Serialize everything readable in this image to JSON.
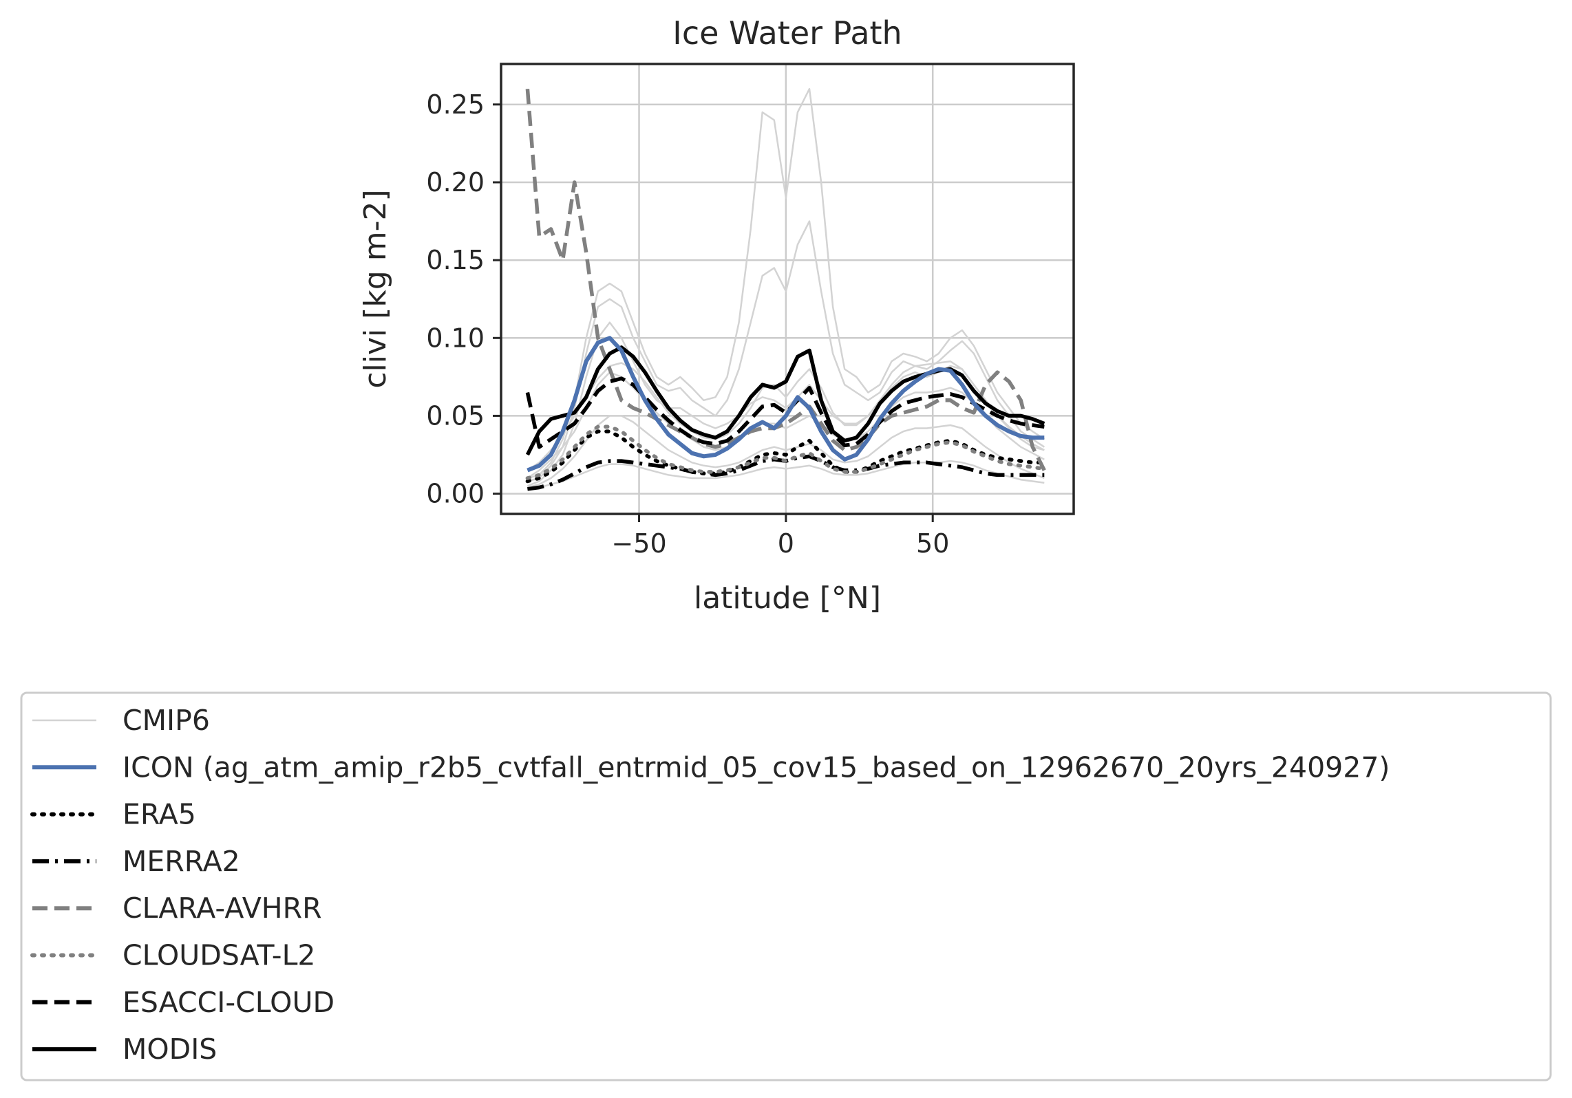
{
  "chart_data": {
    "type": "line",
    "title": "Ice Water Path",
    "xlabel": "latitude [°N]",
    "ylabel": "clivi [kg m-2]",
    "xlim": [
      -97,
      98
    ],
    "ylim": [
      -0.013,
      0.276
    ],
    "xticks": [
      -50,
      0,
      50
    ],
    "xtick_labels": [
      "−50",
      "0",
      "50"
    ],
    "yticks": [
      0.0,
      0.05,
      0.1,
      0.15,
      0.2,
      0.25
    ],
    "ytick_labels": [
      "0.00",
      "0.05",
      "0.10",
      "0.15",
      "0.20",
      "0.25"
    ],
    "grid": true,
    "legend_placement": "below",
    "x": [
      -88,
      -84,
      -80,
      -76,
      -72,
      -68,
      -64,
      -60,
      -56,
      -52,
      -48,
      -44,
      -40,
      -36,
      -32,
      -28,
      -24,
      -20,
      -16,
      -12,
      -8,
      -4,
      0,
      4,
      8,
      12,
      16,
      20,
      24,
      28,
      32,
      36,
      40,
      44,
      48,
      52,
      56,
      60,
      64,
      68,
      72,
      76,
      80,
      84,
      88
    ],
    "cmip6_series": [
      {
        "name": "CMIP6",
        "values": [
          0.01,
          0.012,
          0.02,
          0.035,
          0.06,
          0.1,
          0.13,
          0.135,
          0.13,
          0.11,
          0.09,
          0.075,
          0.07,
          0.075,
          0.068,
          0.06,
          0.062,
          0.075,
          0.11,
          0.17,
          0.245,
          0.24,
          0.19,
          0.245,
          0.26,
          0.2,
          0.12,
          0.08,
          0.075,
          0.065,
          0.07,
          0.085,
          0.09,
          0.088,
          0.085,
          0.09,
          0.1,
          0.105,
          0.095,
          0.08,
          0.065,
          0.055,
          0.045,
          0.04,
          0.035
        ]
      },
      {
        "name": "CMIP6",
        "values": [
          0.008,
          0.01,
          0.018,
          0.03,
          0.055,
          0.09,
          0.12,
          0.125,
          0.12,
          0.1,
          0.085,
          0.07,
          0.066,
          0.068,
          0.06,
          0.055,
          0.05,
          0.06,
          0.08,
          0.11,
          0.14,
          0.145,
          0.13,
          0.16,
          0.175,
          0.13,
          0.09,
          0.07,
          0.065,
          0.06,
          0.065,
          0.078,
          0.085,
          0.082,
          0.08,
          0.085,
          0.092,
          0.098,
          0.09,
          0.075,
          0.06,
          0.05,
          0.04,
          0.035,
          0.03
        ]
      },
      {
        "name": "CMIP6",
        "values": [
          0.005,
          0.008,
          0.015,
          0.025,
          0.045,
          0.075,
          0.1,
          0.11,
          0.1,
          0.085,
          0.07,
          0.06,
          0.055,
          0.055,
          0.05,
          0.045,
          0.042,
          0.045,
          0.05,
          0.058,
          0.062,
          0.06,
          0.055,
          0.062,
          0.07,
          0.06,
          0.05,
          0.045,
          0.045,
          0.05,
          0.058,
          0.068,
          0.075,
          0.078,
          0.075,
          0.078,
          0.082,
          0.08,
          0.07,
          0.06,
          0.05,
          0.042,
          0.035,
          0.03,
          0.028
        ]
      },
      {
        "name": "CMIP6",
        "values": [
          0.01,
          0.015,
          0.022,
          0.03,
          0.04,
          0.055,
          0.07,
          0.078,
          0.075,
          0.068,
          0.06,
          0.052,
          0.045,
          0.04,
          0.035,
          0.03,
          0.028,
          0.03,
          0.035,
          0.04,
          0.045,
          0.045,
          0.042,
          0.046,
          0.05,
          0.045,
          0.038,
          0.034,
          0.035,
          0.04,
          0.048,
          0.056,
          0.062,
          0.065,
          0.065,
          0.066,
          0.068,
          0.065,
          0.058,
          0.05,
          0.042,
          0.036,
          0.03,
          0.026,
          0.022
        ]
      },
      {
        "name": "CMIP6",
        "values": [
          0.004,
          0.006,
          0.01,
          0.016,
          0.024,
          0.034,
          0.044,
          0.05,
          0.05,
          0.046,
          0.04,
          0.034,
          0.028,
          0.024,
          0.02,
          0.018,
          0.017,
          0.018,
          0.02,
          0.024,
          0.028,
          0.03,
          0.028,
          0.03,
          0.032,
          0.028,
          0.022,
          0.02,
          0.021,
          0.024,
          0.03,
          0.036,
          0.04,
          0.042,
          0.042,
          0.043,
          0.044,
          0.042,
          0.036,
          0.03,
          0.025,
          0.02,
          0.016,
          0.013,
          0.01
        ]
      },
      {
        "name": "CMIP6",
        "values": [
          0.003,
          0.004,
          0.006,
          0.008,
          0.011,
          0.014,
          0.017,
          0.019,
          0.019,
          0.018,
          0.016,
          0.014,
          0.012,
          0.011,
          0.01,
          0.01,
          0.01,
          0.011,
          0.012,
          0.014,
          0.016,
          0.017,
          0.016,
          0.017,
          0.018,
          0.016,
          0.013,
          0.012,
          0.012,
          0.013,
          0.015,
          0.017,
          0.019,
          0.02,
          0.02,
          0.02,
          0.021,
          0.02,
          0.018,
          0.015,
          0.013,
          0.011,
          0.009,
          0.008,
          0.007
        ]
      },
      {
        "name": "CMIP6",
        "values": [
          0.015,
          0.02,
          0.028,
          0.038,
          0.05,
          0.062,
          0.074,
          0.082,
          0.084,
          0.08,
          0.072,
          0.062,
          0.052,
          0.045,
          0.04,
          0.036,
          0.035,
          0.038,
          0.045,
          0.055,
          0.068,
          0.07,
          0.062,
          0.072,
          0.08,
          0.068,
          0.052,
          0.044,
          0.044,
          0.05,
          0.06,
          0.07,
          0.078,
          0.082,
          0.083,
          0.084,
          0.085,
          0.08,
          0.07,
          0.06,
          0.05,
          0.043,
          0.037,
          0.032,
          0.028
        ]
      }
    ],
    "series": [
      {
        "name": "ICON (ag_atm_amip_r2b5_cvtfall_entrmid_05_cov15_based_on_12962670_20yrs_240927)",
        "color": "#4c72b0",
        "style": "solid",
        "values": [
          0.015,
          0.018,
          0.025,
          0.04,
          0.06,
          0.085,
          0.097,
          0.1,
          0.092,
          0.075,
          0.06,
          0.048,
          0.038,
          0.032,
          0.026,
          0.024,
          0.025,
          0.029,
          0.035,
          0.042,
          0.046,
          0.042,
          0.05,
          0.062,
          0.055,
          0.04,
          0.028,
          0.022,
          0.025,
          0.035,
          0.048,
          0.058,
          0.066,
          0.072,
          0.077,
          0.08,
          0.079,
          0.07,
          0.058,
          0.05,
          0.044,
          0.04,
          0.037,
          0.036,
          0.036
        ]
      },
      {
        "name": "ERA5",
        "color": "#000000",
        "style": "dotted",
        "values": [
          0.008,
          0.01,
          0.014,
          0.02,
          0.028,
          0.036,
          0.04,
          0.04,
          0.036,
          0.03,
          0.025,
          0.021,
          0.018,
          0.016,
          0.014,
          0.013,
          0.013,
          0.014,
          0.017,
          0.021,
          0.025,
          0.026,
          0.025,
          0.03,
          0.034,
          0.026,
          0.018,
          0.014,
          0.014,
          0.017,
          0.021,
          0.024,
          0.027,
          0.029,
          0.031,
          0.033,
          0.034,
          0.032,
          0.028,
          0.025,
          0.023,
          0.022,
          0.021,
          0.02,
          0.02
        ]
      },
      {
        "name": "MERRA2",
        "color": "#000000",
        "style": "dashdot",
        "values": [
          0.003,
          0.004,
          0.006,
          0.009,
          0.013,
          0.017,
          0.02,
          0.021,
          0.021,
          0.02,
          0.019,
          0.018,
          0.017,
          0.016,
          0.014,
          0.013,
          0.012,
          0.013,
          0.015,
          0.018,
          0.021,
          0.022,
          0.021,
          0.023,
          0.024,
          0.021,
          0.017,
          0.015,
          0.015,
          0.016,
          0.018,
          0.019,
          0.02,
          0.02,
          0.02,
          0.019,
          0.018,
          0.017,
          0.015,
          0.013,
          0.012,
          0.012,
          0.012,
          0.012,
          0.012
        ]
      },
      {
        "name": "CLARA-AVHRR",
        "color": "#808080",
        "style": "dashed",
        "values": [
          0.26,
          0.165,
          0.17,
          0.15,
          0.2,
          0.155,
          0.1,
          0.08,
          0.06,
          0.055,
          0.052,
          0.048,
          0.044,
          0.04,
          0.036,
          0.032,
          0.03,
          0.032,
          0.036,
          0.04,
          0.042,
          0.042,
          0.045,
          0.05,
          0.056,
          0.045,
          0.034,
          0.028,
          0.03,
          0.036,
          0.045,
          0.05,
          0.052,
          0.054,
          0.056,
          0.06,
          0.06,
          0.055,
          0.052,
          0.07,
          0.078,
          0.072,
          0.06,
          0.03,
          0.015
        ]
      },
      {
        "name": "CLOUDSAT-L2",
        "color": "#808080",
        "style": "dotted",
        "values": [
          0.01,
          0.012,
          0.016,
          0.022,
          0.03,
          0.038,
          0.043,
          0.043,
          0.04,
          0.034,
          0.028,
          0.023,
          0.019,
          0.017,
          0.015,
          0.014,
          0.014,
          0.015,
          0.017,
          0.02,
          0.023,
          0.023,
          0.021,
          0.024,
          0.026,
          0.021,
          0.016,
          0.014,
          0.014,
          0.016,
          0.019,
          0.022,
          0.025,
          0.028,
          0.03,
          0.032,
          0.033,
          0.031,
          0.027,
          0.024,
          0.021,
          0.019,
          0.018,
          0.017,
          0.016
        ]
      },
      {
        "name": "ESACCI-CLOUD",
        "color": "#000000",
        "style": "dashed",
        "values": [
          0.065,
          0.03,
          0.035,
          0.04,
          0.045,
          0.055,
          0.066,
          0.072,
          0.074,
          0.07,
          0.062,
          0.054,
          0.047,
          0.041,
          0.036,
          0.033,
          0.032,
          0.034,
          0.04,
          0.048,
          0.056,
          0.057,
          0.052,
          0.06,
          0.068,
          0.052,
          0.038,
          0.031,
          0.032,
          0.038,
          0.046,
          0.053,
          0.058,
          0.06,
          0.062,
          0.063,
          0.064,
          0.062,
          0.058,
          0.054,
          0.05,
          0.047,
          0.045,
          0.044,
          0.043
        ]
      },
      {
        "name": "MODIS",
        "color": "#000000",
        "style": "solid",
        "values": [
          0.025,
          0.04,
          0.048,
          0.05,
          0.052,
          0.062,
          0.08,
          0.09,
          0.094,
          0.088,
          0.078,
          0.066,
          0.055,
          0.047,
          0.041,
          0.038,
          0.036,
          0.04,
          0.05,
          0.062,
          0.07,
          0.068,
          0.072,
          0.088,
          0.092,
          0.06,
          0.04,
          0.034,
          0.036,
          0.045,
          0.058,
          0.066,
          0.072,
          0.075,
          0.077,
          0.079,
          0.08,
          0.076,
          0.066,
          0.058,
          0.053,
          0.05,
          0.05,
          0.048,
          0.045
        ]
      }
    ],
    "legend": {
      "entries": [
        {
          "label": "CMIP6",
          "color": "#d3d3d3",
          "style": "thin"
        },
        {
          "label": "ICON (ag_atm_amip_r2b5_cvtfall_entrmid_05_cov15_based_on_12962670_20yrs_240927)",
          "color": "#4c72b0",
          "style": "solid"
        },
        {
          "label": "ERA5",
          "color": "#000000",
          "style": "dotted"
        },
        {
          "label": "MERRA2",
          "color": "#000000",
          "style": "dashdot"
        },
        {
          "label": "CLARA-AVHRR",
          "color": "#808080",
          "style": "dashed"
        },
        {
          "label": "CLOUDSAT-L2",
          "color": "#808080",
          "style": "dotted"
        },
        {
          "label": "ESACCI-CLOUD",
          "color": "#000000",
          "style": "dashed"
        },
        {
          "label": "MODIS",
          "color": "#000000",
          "style": "solid"
        }
      ]
    }
  }
}
